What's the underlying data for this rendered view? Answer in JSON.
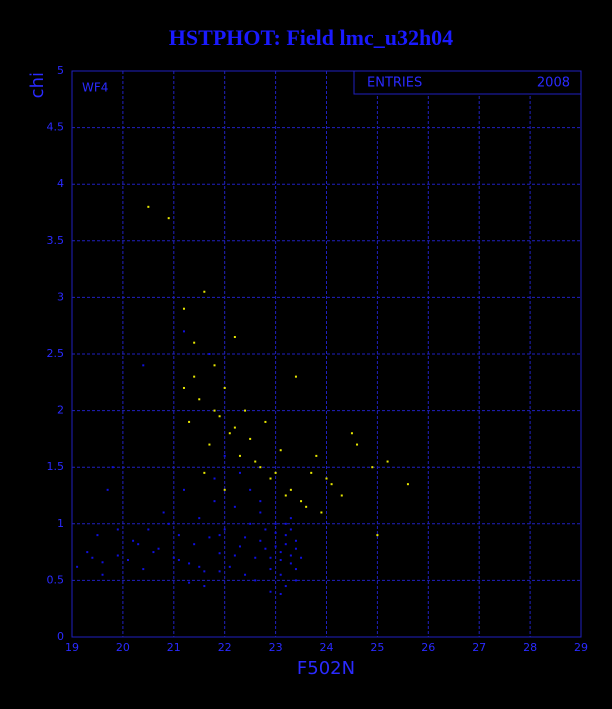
{
  "chart_data": {
    "type": "scatter",
    "title": "HSTPHOT: Field lmc_u32h04",
    "x_label": "F502N",
    "y_label": "chi",
    "annotation": "WF4",
    "stats": {
      "label": "ENTRIES",
      "value": 2008
    },
    "xlim": [
      19,
      29
    ],
    "xticks": [
      19,
      20,
      21,
      22,
      23,
      24,
      25,
      26,
      27,
      28,
      29
    ],
    "ylim": [
      0,
      5
    ],
    "yticks": [
      0,
      0.5,
      1,
      1.5,
      2,
      2.5,
      3,
      3.5,
      4,
      4.5,
      5
    ],
    "grid": true,
    "series": [
      {
        "color": "#e8e800",
        "x": [
          20.5,
          20.9,
          21.2,
          21.4,
          21.6,
          21.8,
          22.0,
          22.2,
          21.3,
          21.5,
          21.7,
          21.9,
          22.1,
          22.3,
          22.5,
          22.7,
          22.9,
          23.1,
          23.3,
          23.5,
          23.7,
          23.9,
          24.1,
          24.3,
          24.6,
          24.9,
          25.2,
          25.6,
          21.4,
          21.8,
          22.2,
          22.6,
          23.0,
          23.4,
          23.8,
          22.4,
          22.0,
          21.6,
          21.2,
          22.8,
          23.2,
          23.6,
          24.0,
          24.5,
          25.0
        ],
        "values": [
          3.8,
          3.7,
          2.9,
          2.6,
          3.05,
          2.4,
          2.2,
          2.65,
          1.9,
          2.1,
          1.7,
          1.95,
          1.8,
          1.6,
          1.75,
          1.5,
          1.4,
          1.65,
          1.3,
          1.2,
          1.45,
          1.1,
          1.35,
          1.25,
          1.7,
          1.5,
          1.55,
          1.35,
          2.3,
          2.0,
          1.85,
          1.55,
          1.45,
          2.3,
          1.6,
          2.0,
          1.3,
          1.45,
          2.2,
          1.9,
          1.25,
          1.15,
          1.4,
          1.8,
          0.9
        ]
      },
      {
        "color": "#1010e0",
        "x": [
          19.1,
          19.3,
          19.5,
          19.6,
          19.8,
          19.9,
          20.1,
          20.2,
          20.4,
          20.5,
          20.7,
          20.8,
          21.0,
          21.1,
          21.2,
          21.3,
          21.4,
          21.5,
          21.6,
          21.7,
          21.8,
          21.9,
          22.0,
          22.1,
          22.2,
          22.3,
          22.4,
          22.5,
          22.6,
          22.7,
          22.8,
          22.9,
          23.0,
          23.1,
          23.2,
          23.3,
          23.4,
          23.5,
          23.0,
          23.1,
          23.2,
          23.3,
          23.4,
          22.8,
          22.9,
          23.0,
          23.1,
          23.2,
          23.3,
          22.6,
          22.7,
          22.9,
          23.1,
          23.3,
          23.4,
          22.5,
          22.4,
          22.2,
          21.9,
          21.7,
          21.5,
          21.2,
          20.9,
          20.6,
          20.3,
          19.9,
          19.6,
          19.4,
          22.0,
          21.8,
          21.6,
          22.3,
          22.7,
          23.2,
          23.4,
          21.1,
          21.3,
          20.4,
          19.7,
          21.9
        ],
        "values": [
          0.62,
          0.75,
          0.9,
          0.55,
          1.5,
          0.72,
          0.68,
          0.85,
          0.6,
          0.95,
          0.78,
          1.1,
          0.7,
          0.9,
          1.3,
          0.65,
          0.82,
          1.05,
          0.58,
          0.88,
          1.2,
          0.74,
          0.95,
          0.62,
          1.15,
          0.8,
          0.55,
          1.0,
          0.7,
          0.85,
          0.95,
          0.6,
          0.8,
          0.75,
          0.9,
          0.65,
          0.85,
          0.7,
          1.0,
          0.55,
          0.45,
          1.05,
          0.6,
          0.78,
          0.7,
          0.92,
          0.68,
          0.82,
          0.95,
          0.5,
          1.1,
          0.4,
          0.38,
          0.72,
          0.5,
          1.3,
          0.88,
          0.72,
          0.9,
          2.5,
          0.62,
          2.7,
          1.0,
          0.75,
          0.82,
          0.95,
          0.66,
          0.7,
          1.6,
          1.4,
          0.45,
          1.45,
          1.2,
          1.0,
          0.78,
          0.68,
          0.48,
          2.4,
          1.3,
          0.58
        ]
      }
    ]
  }
}
